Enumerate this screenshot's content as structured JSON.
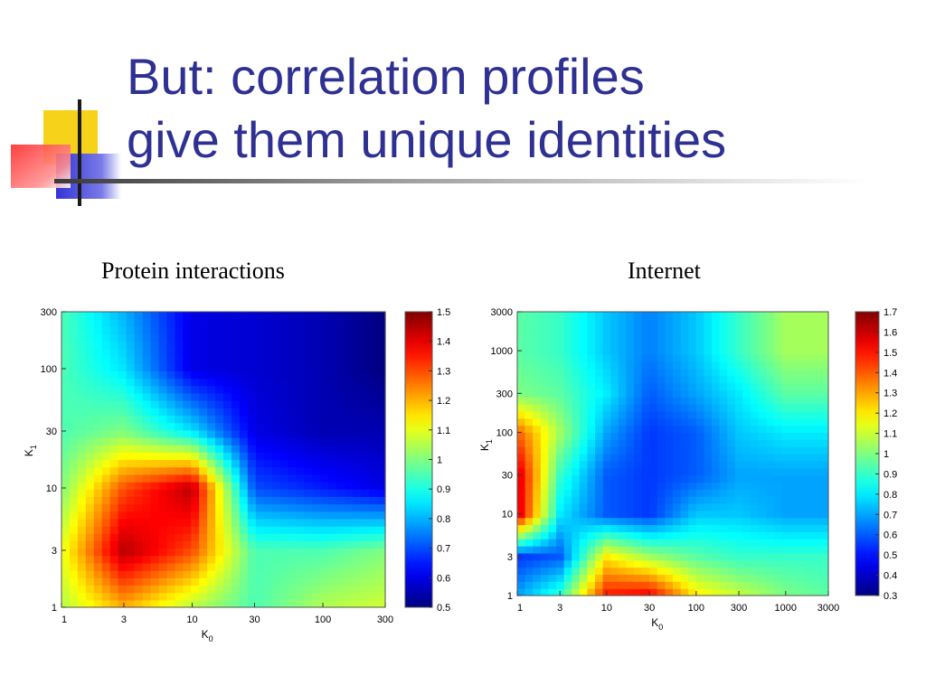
{
  "slide": {
    "title_line1": "But: correlation profiles",
    "title_line2": "give them unique identities",
    "colors": {
      "title": "#2e3192",
      "deco_yellow": "#f7d21a",
      "deco_red": "#ff3b3b",
      "deco_blue": "#3a3ad8"
    }
  },
  "chart_data": [
    {
      "type": "heatmap",
      "title": "Protein interactions",
      "xlabel": "K0",
      "ylabel": "K1",
      "scale": "log",
      "xlim": [
        1,
        300
      ],
      "ylim": [
        1,
        300
      ],
      "x_ticks": [
        "1",
        "3",
        "10",
        "30",
        "100",
        "300"
      ],
      "y_ticks": [
        "1",
        "3",
        "10",
        "30",
        "100",
        "300"
      ],
      "colorbar": {
        "min": 0.5,
        "max": 1.5,
        "ticks": [
          "1.5",
          "1.4",
          "1.3",
          "1.2",
          "1.1",
          "1",
          "0.9",
          "0.8",
          "0.7",
          "0.6",
          "0.5"
        ]
      },
      "grid_axis": [
        1,
        3,
        10,
        30,
        100,
        300
      ],
      "z": [
        [
          1.05,
          1.2,
          1.05,
          0.95,
          1.05,
          1.08
        ],
        [
          1.1,
          1.45,
          1.3,
          0.95,
          0.95,
          1.0
        ],
        [
          1.0,
          1.3,
          1.45,
          0.7,
          0.65,
          0.6
        ],
        [
          0.95,
          1.0,
          0.85,
          0.6,
          0.55,
          0.55
        ],
        [
          0.95,
          0.85,
          0.6,
          0.58,
          0.55,
          0.5
        ],
        [
          0.95,
          0.8,
          0.6,
          0.58,
          0.55,
          0.5
        ]
      ]
    },
    {
      "type": "heatmap",
      "title": "Internet",
      "xlabel": "K0",
      "ylabel": "K1",
      "scale": "log",
      "xlim": [
        1,
        3000
      ],
      "ylim": [
        1,
        3000
      ],
      "x_ticks": [
        "1",
        "3",
        "10",
        "30",
        "100",
        "300",
        "1000",
        "3000"
      ],
      "y_ticks": [
        "1",
        "3",
        "10",
        "30",
        "100",
        "300",
        "1000",
        "3000"
      ],
      "colorbar": {
        "min": 0.3,
        "max": 1.7,
        "ticks": [
          "1.7",
          "1.6",
          "1.5",
          "1.4",
          "1.3",
          "1.2",
          "1.1",
          "1",
          "0.9",
          "0.8",
          "0.7",
          "0.6",
          "0.5",
          "0.4",
          "0.3"
        ]
      },
      "grid_axis": [
        1,
        3,
        10,
        30,
        100,
        300,
        1000,
        3000
      ],
      "z": [
        [
          0.7,
          0.9,
          1.5,
          1.55,
          1.2,
          1.1,
          1.0,
          0.95
        ],
        [
          0.55,
          0.6,
          1.2,
          1.05,
          0.95,
          0.9,
          0.9,
          0.9
        ],
        [
          1.6,
          0.8,
          0.6,
          0.55,
          0.75,
          0.75,
          0.7,
          0.7
        ],
        [
          1.6,
          0.9,
          0.6,
          0.55,
          0.6,
          0.7,
          0.7,
          0.7
        ],
        [
          1.4,
          1.05,
          0.7,
          0.55,
          0.6,
          0.75,
          0.8,
          0.8
        ],
        [
          1.0,
          0.95,
          0.8,
          0.6,
          0.7,
          0.8,
          0.95,
          0.95
        ],
        [
          0.95,
          0.9,
          0.75,
          0.65,
          0.75,
          0.9,
          1.05,
          1.05
        ],
        [
          0.95,
          0.9,
          0.75,
          0.65,
          0.75,
          0.9,
          1.05,
          1.05
        ]
      ]
    }
  ]
}
